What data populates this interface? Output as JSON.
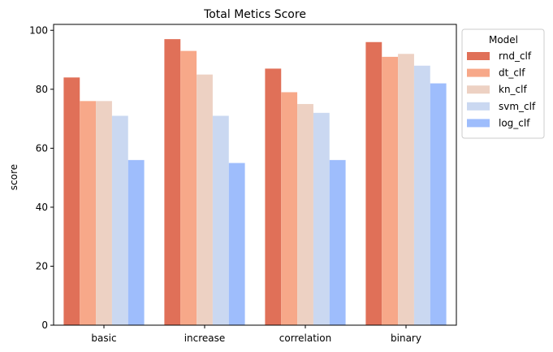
{
  "chart_data": {
    "type": "bar",
    "title": "Total Metics Score",
    "xlabel": "",
    "ylabel": "score",
    "categories": [
      "basic",
      "increase",
      "correlation",
      "binary"
    ],
    "ylim": [
      0,
      102
    ],
    "yticks": [
      0,
      20,
      40,
      60,
      80,
      100
    ],
    "grid": false,
    "legend": {
      "title": "Model",
      "placement": "outside-top-right"
    },
    "series": [
      {
        "name": "rnd_clf",
        "color": "#e07058",
        "values": [
          84,
          97,
          87,
          96
        ]
      },
      {
        "name": "dt_clf",
        "color": "#f7a889",
        "values": [
          76,
          93,
          79,
          91
        ]
      },
      {
        "name": "kn_clf",
        "color": "#edd1c3",
        "values": [
          76,
          85,
          75,
          92
        ]
      },
      {
        "name": "svm_clf",
        "color": "#cad8f1",
        "values": [
          71,
          71,
          72,
          88
        ]
      },
      {
        "name": "log_clf",
        "color": "#9ebdfc",
        "values": [
          56,
          55,
          56,
          82
        ]
      }
    ]
  }
}
